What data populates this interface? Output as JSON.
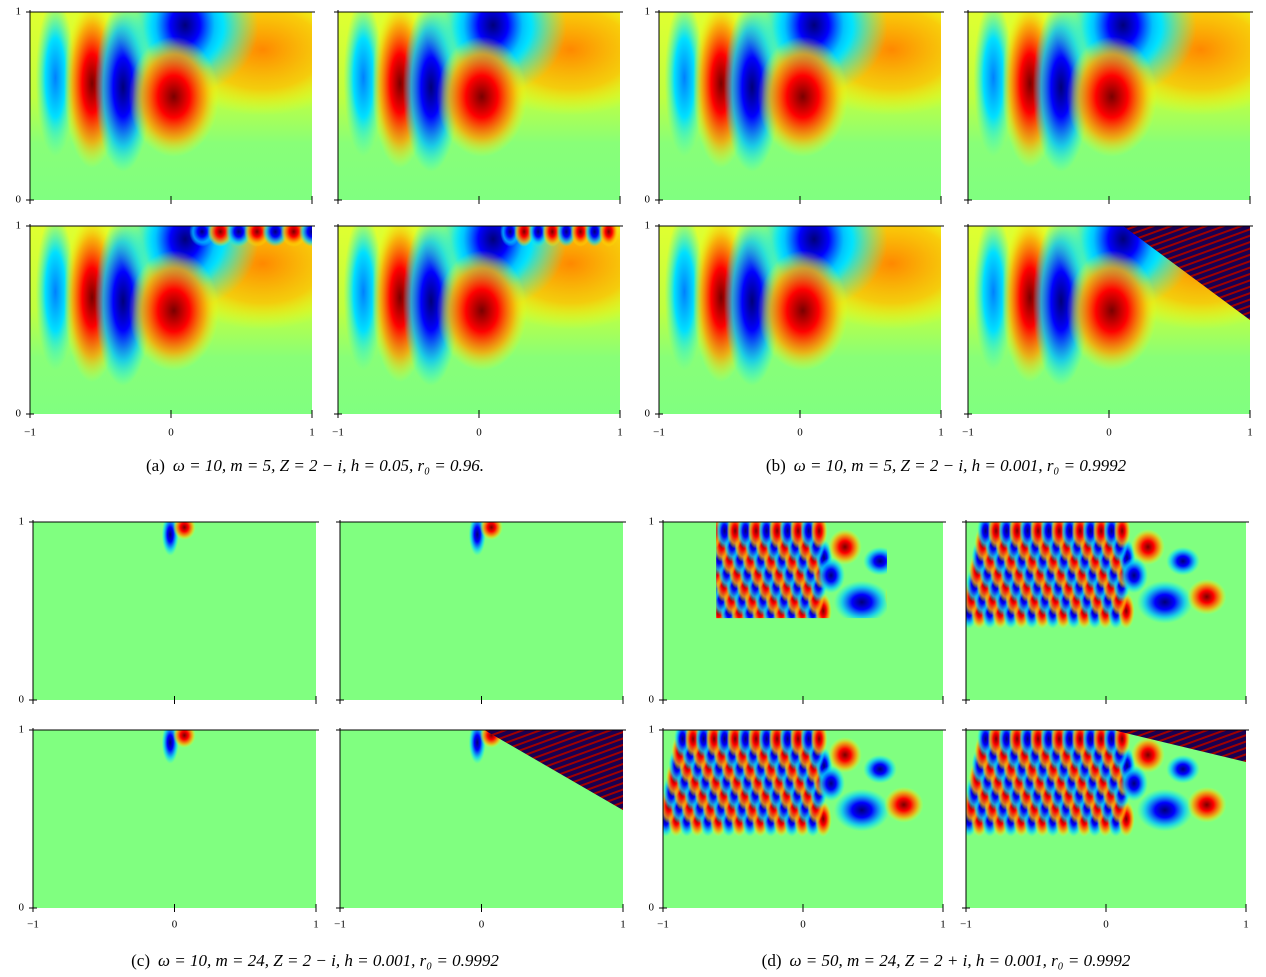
{
  "figure": {
    "axes": {
      "xlim": [
        -1,
        1
      ],
      "ylim": [
        0,
        1
      ],
      "xticks": [
        {
          "value": -1,
          "label": "−1"
        },
        0,
        1
      ],
      "yticks": [
        0,
        1
      ]
    },
    "subfigures": [
      {
        "label": "(a)",
        "caption": "ω = 10, m = 5, Z = 2 − i, h = 0.05, r₀ = 0.96."
      },
      {
        "label": "(b)",
        "caption": "ω = 10, m = 5, Z = 2 − i, h = 0.001, r₀ = 0.9992"
      },
      {
        "label": "(c)",
        "caption": "ω = 10, m = 24, Z = 2 − i, h = 0.001, r₀ = 0.9992"
      },
      {
        "label": "(d)",
        "caption": "ω = 50, m = 24, Z = 2 + i, h = 0.001, r₀ = 0.9992"
      }
    ]
  }
}
